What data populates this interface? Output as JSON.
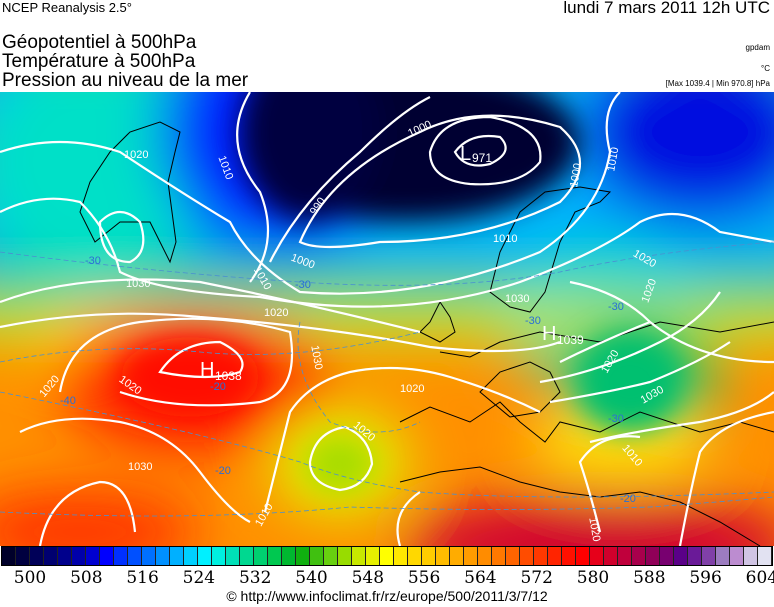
{
  "header": {
    "source": "NCEP Reanalysis 2.5°",
    "datetime": "lundi 7 mars 2011 12h UTC",
    "titles": [
      "Géopotentiel à 500hPa",
      "Température à 500hPa",
      "Pression au niveau de la mer"
    ],
    "units": [
      "gpdam",
      "°C",
      "[Max 1039.4 | Min 970.8] hPa"
    ]
  },
  "map": {
    "pressure_centers": [
      {
        "type": "L",
        "value": "971"
      },
      {
        "type": "H",
        "value": "1038"
      },
      {
        "type": "H",
        "value": "1039"
      }
    ],
    "isobar_labels": [
      "1020",
      "1010",
      "990",
      "1000",
      "1030",
      "1020",
      "1000",
      "1010",
      "1000",
      "1010",
      "1020",
      "1010",
      "1030",
      "1020",
      "1020",
      "1030",
      "1030",
      "1020",
      "1010",
      "1020",
      "1020",
      "1030",
      "1020",
      "1010",
      "1020"
    ],
    "temperature_labels": [
      "-30",
      "-30",
      "-30",
      "-40",
      "-30",
      "-20",
      "-20",
      "-30",
      "-20"
    ]
  },
  "legend": {
    "ticks": [
      "500",
      "508",
      "516",
      "524",
      "532",
      "540",
      "548",
      "556",
      "564",
      "572",
      "580",
      "588",
      "596",
      "604"
    ],
    "colors": [
      "#00002a",
      "#000040",
      "#000058",
      "#000070",
      "#00008c",
      "#0000aa",
      "#0000d0",
      "#0000ff",
      "#0030ff",
      "#0050ff",
      "#0070ff",
      "#0090ff",
      "#00b0ff",
      "#00d0ff",
      "#00f0ff",
      "#00f0e0",
      "#00e0b8",
      "#00d890",
      "#00d070",
      "#00c850",
      "#00b830",
      "#10b010",
      "#40c010",
      "#68d010",
      "#98dc00",
      "#c8e800",
      "#e6f000",
      "#ffff00",
      "#ffe800",
      "#ffd800",
      "#ffcc00",
      "#ffbc00",
      "#ffac00",
      "#ff9c00",
      "#ff8c00",
      "#ff7800",
      "#ff6400",
      "#ff4c00",
      "#ff3800",
      "#ff2400",
      "#ff1000",
      "#ff0000",
      "#e6001a",
      "#d0002c",
      "#c0003c",
      "#a8004c",
      "#900058",
      "#780070",
      "#5a0088",
      "#6a1a98",
      "#8040a8",
      "#9c7cc0",
      "#bc8cd0",
      "#d0c4e4",
      "#e2e2f2"
    ]
  },
  "footer": {
    "copyright": "© http://www.infoclimat.fr/rz/europe/500/2011/3/7/12"
  }
}
